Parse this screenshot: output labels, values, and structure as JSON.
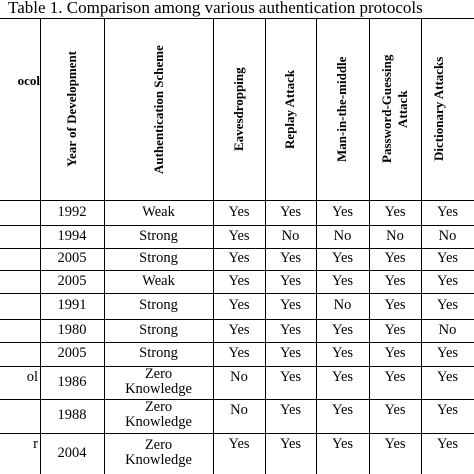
{
  "caption": "Table 1. Comparison among various authentication protocols",
  "headers": {
    "protocol_fragment": "ocol",
    "year": "Year of Development",
    "scheme": "Authentication Scheme",
    "eavesdropping": "Eavesdropping",
    "replay": "Replay Attack",
    "mitm": "Man-in-the-middle",
    "password_guessing_1": "Password-Guessing",
    "password_guessing_2": "Attack",
    "dictionary": "Dictionary Attacks"
  },
  "rows": [
    {
      "protocol_fragment": "",
      "year": "1992",
      "scheme": [
        "Weak"
      ],
      "eavesdropping": "Yes",
      "replay": "Yes",
      "mitm": "Yes",
      "password_guessing": "Yes",
      "dictionary": "Yes"
    },
    {
      "protocol_fragment": "",
      "year": "1994",
      "scheme": [
        "Strong"
      ],
      "eavesdropping": "Yes",
      "replay": "No",
      "mitm": "No",
      "password_guessing": "No",
      "dictionary": "No"
    },
    {
      "protocol_fragment": "",
      "year": "2005",
      "scheme": [
        "Strong"
      ],
      "eavesdropping": "Yes",
      "replay": "Yes",
      "mitm": "Yes",
      "password_guessing": "Yes",
      "dictionary": "Yes"
    },
    {
      "protocol_fragment": "",
      "year": "2005",
      "scheme": [
        "Weak"
      ],
      "eavesdropping": "Yes",
      "replay": "Yes",
      "mitm": "Yes",
      "password_guessing": "Yes",
      "dictionary": "Yes"
    },
    {
      "protocol_fragment": "",
      "year": "1991",
      "scheme": [
        "Strong"
      ],
      "eavesdropping": "Yes",
      "replay": "Yes",
      "mitm": "No",
      "password_guessing": "Yes",
      "dictionary": "Yes"
    },
    {
      "protocol_fragment": "",
      "year": "1980",
      "scheme": [
        "Strong"
      ],
      "eavesdropping": "Yes",
      "replay": "Yes",
      "mitm": "Yes",
      "password_guessing": "Yes",
      "dictionary": "No"
    },
    {
      "protocol_fragment": "",
      "year": "2005",
      "scheme": [
        "Strong"
      ],
      "eavesdropping": "Yes",
      "replay": "Yes",
      "mitm": "Yes",
      "password_guessing": "Yes",
      "dictionary": "Yes"
    },
    {
      "protocol_fragment": "ol",
      "year": "1986",
      "scheme": [
        "Zero",
        "Knowledge"
      ],
      "eavesdropping": "No",
      "replay": "Yes",
      "mitm": "Yes",
      "password_guessing": "Yes",
      "dictionary": "Yes"
    },
    {
      "protocol_fragment": "",
      "year": "1988",
      "scheme": [
        "Zero",
        "Knowledge"
      ],
      "eavesdropping": "No",
      "replay": "Yes",
      "mitm": "Yes",
      "password_guessing": "Yes",
      "dictionary": "Yes"
    },
    {
      "protocol_fragment": "r",
      "year": "2004",
      "scheme": [
        "Zero",
        "Knowledge"
      ],
      "eavesdropping": "Yes",
      "replay": "Yes",
      "mitm": "Yes",
      "password_guessing": "Yes",
      "dictionary": "Yes"
    }
  ]
}
